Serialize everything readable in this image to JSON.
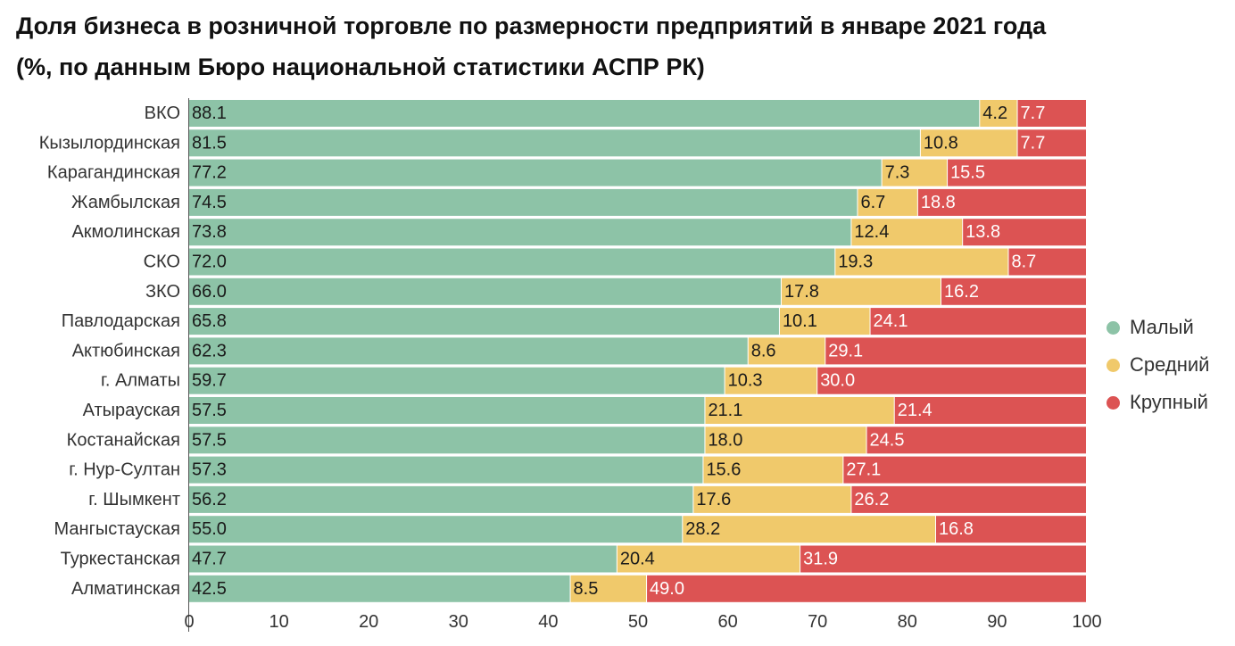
{
  "title": {
    "line1": "Доля бизнеса в розничной торговле по размерности предприятий в январе 2021 года",
    "line2": "(%, по данным Бюро национальной статистики АСПР РК)"
  },
  "legend": [
    {
      "label": "Малый",
      "color": "#8dc3a7"
    },
    {
      "label": "Средний",
      "color": "#f0c96b"
    },
    {
      "label": "Крупный",
      "color": "#dc5353"
    }
  ],
  "chart_data": {
    "type": "bar",
    "orientation": "horizontal",
    "stacked": true,
    "title": "Доля бизнеса в розничной торговле по размерности предприятий в январе 2021 года (%, по данным Бюро национальной статистики АСПР РК)",
    "xlim": [
      0,
      100
    ],
    "xticks": [
      "0",
      "10",
      "20",
      "30",
      "40",
      "50",
      "60",
      "70",
      "80",
      "90",
      "100"
    ],
    "legend_position": "right",
    "grid": false,
    "categories": [
      "ВКО",
      "Кызылординская",
      "Карагандинская",
      "Жамбылская",
      "Акмолинская",
      "СКО",
      "ЗКО",
      "Павлодарская",
      "Актюбинская",
      "г. Алматы",
      "Атырауская",
      "Костанайская",
      "г. Нур-Султан",
      "г. Шымкент",
      "Мангыстауская",
      "Туркестанская",
      "Алматинская"
    ],
    "series": [
      {
        "name": "Малый",
        "color": "#8dc3a7",
        "label_color": "#1a1a1a",
        "values": [
          88.1,
          81.5,
          77.2,
          74.5,
          73.8,
          72.0,
          66.0,
          65.8,
          62.3,
          59.7,
          57.5,
          57.5,
          57.3,
          56.2,
          55.0,
          47.7,
          42.5
        ]
      },
      {
        "name": "Средний",
        "color": "#f0c96b",
        "label_color": "#1a1a1a",
        "values": [
          4.2,
          10.8,
          7.3,
          6.7,
          12.4,
          19.3,
          17.8,
          10.1,
          8.6,
          10.3,
          21.1,
          18.0,
          15.6,
          17.6,
          28.2,
          20.4,
          8.5
        ]
      },
      {
        "name": "Крупный",
        "color": "#dc5353",
        "label_color": "#ffffff",
        "values": [
          7.7,
          7.7,
          15.5,
          18.8,
          13.8,
          8.7,
          16.2,
          24.1,
          29.1,
          30.0,
          21.4,
          24.5,
          27.1,
          26.2,
          16.8,
          31.9,
          49.0
        ]
      }
    ]
  }
}
